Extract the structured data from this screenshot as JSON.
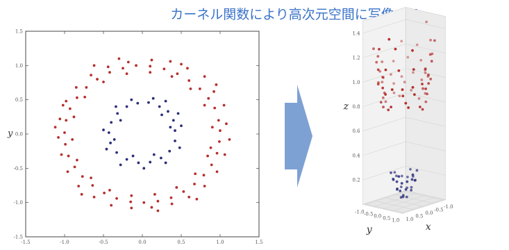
{
  "title": "カーネル関数により高次元空間に写像する。",
  "colors": {
    "outer": "#b5302e",
    "inner": "#2b2f7a",
    "arrow": "#7ea1d4",
    "title": "#3a73c9"
  },
  "chart_data": [
    {
      "type": "scatter",
      "xlim": [
        -1.5,
        1.5
      ],
      "ylim": [
        -1.5,
        1.5
      ],
      "xticks": [
        "-1.5",
        "-1.0",
        "-0.5",
        "0.0",
        "0.5",
        "1.0",
        "1.5"
      ],
      "yticks": [
        "1.5",
        "1.0",
        "0.5",
        "0.0",
        "-0.5",
        "-1.0",
        "-1.5"
      ],
      "xlabel": "",
      "ylabel": "y",
      "series": [
        {
          "color": "outer",
          "points": [
            [
              1.0,
              0.05
            ],
            [
              0.98,
              0.2
            ],
            [
              0.93,
              0.38
            ],
            [
              0.85,
              0.52
            ],
            [
              0.74,
              0.66
            ],
            [
              0.6,
              0.78
            ],
            [
              0.45,
              0.88
            ],
            [
              0.28,
              0.95
            ],
            [
              0.1,
              0.99
            ],
            [
              -0.08,
              1.0
            ],
            [
              -0.25,
              0.96
            ],
            [
              -0.42,
              0.9
            ],
            [
              -0.58,
              0.8
            ],
            [
              -0.72,
              0.68
            ],
            [
              -0.84,
              0.53
            ],
            [
              -0.93,
              0.37
            ],
            [
              -0.98,
              0.2
            ],
            [
              -1.0,
              0.02
            ],
            [
              -0.99,
              -0.15
            ],
            [
              -0.95,
              -0.32
            ],
            [
              -0.87,
              -0.48
            ],
            [
              -0.77,
              -0.62
            ],
            [
              -0.64,
              -0.75
            ],
            [
              -0.49,
              -0.86
            ],
            [
              -0.33,
              -0.94
            ],
            [
              -0.15,
              -0.99
            ],
            [
              0.02,
              -1.0
            ],
            [
              0.2,
              -0.98
            ],
            [
              0.37,
              -0.93
            ],
            [
              0.53,
              -0.84
            ],
            [
              0.67,
              -0.73
            ],
            [
              0.79,
              -0.6
            ],
            [
              0.89,
              -0.45
            ],
            [
              0.96,
              -0.28
            ],
            [
              0.99,
              -0.11
            ],
            [
              1.08,
              0.15
            ],
            [
              1.05,
              0.42
            ],
            [
              0.92,
              0.62
            ],
            [
              0.8,
              0.84
            ],
            [
              0.58,
              0.96
            ],
            [
              0.36,
              1.06
            ],
            [
              0.12,
              1.08
            ],
            [
              -0.18,
              1.05
            ],
            [
              -0.44,
              0.98
            ],
            [
              -0.66,
              0.86
            ],
            [
              -0.85,
              0.68
            ],
            [
              -0.98,
              0.48
            ],
            [
              -1.06,
              0.22
            ],
            [
              -1.08,
              -0.05
            ],
            [
              -1.04,
              -0.3
            ],
            [
              -0.96,
              -0.55
            ],
            [
              -0.82,
              -0.76
            ],
            [
              -0.62,
              -0.92
            ],
            [
              -0.4,
              -1.04
            ],
            [
              -0.14,
              -1.08
            ],
            [
              0.12,
              -1.07
            ],
            [
              0.38,
              -1.02
            ],
            [
              0.6,
              -0.92
            ],
            [
              0.8,
              -0.76
            ],
            [
              0.96,
              -0.55
            ],
            [
              1.06,
              -0.3
            ],
            [
              0.9,
              0.1
            ],
            [
              0.88,
              -0.2
            ],
            [
              0.8,
              0.42
            ],
            [
              0.62,
              0.66
            ],
            [
              0.38,
              0.84
            ],
            [
              0.1,
              0.9
            ],
            [
              -0.2,
              0.88
            ],
            [
              -0.5,
              0.76
            ],
            [
              -0.74,
              0.54
            ],
            [
              -0.88,
              0.25
            ],
            [
              -0.9,
              -0.08
            ],
            [
              -0.84,
              -0.38
            ],
            [
              -0.66,
              -0.64
            ],
            [
              -0.42,
              -0.82
            ],
            [
              -0.14,
              -0.9
            ],
            [
              0.16,
              -0.88
            ],
            [
              0.44,
              -0.78
            ],
            [
              0.68,
              -0.58
            ],
            [
              0.84,
              -0.32
            ],
            [
              0.5,
              1.02
            ],
            [
              -0.62,
              1.0
            ],
            [
              1.12,
              -0.08
            ],
            [
              -1.12,
              0.1
            ],
            [
              0.2,
              -1.12
            ],
            [
              -0.3,
              1.1
            ],
            [
              0.7,
              -0.95
            ],
            [
              -0.78,
              -0.88
            ],
            [
              0.95,
              0.72
            ],
            [
              -1.02,
              0.42
            ]
          ]
        },
        {
          "color": "inner",
          "points": [
            [
              0.42,
              0.05
            ],
            [
              0.4,
              0.2
            ],
            [
              0.33,
              0.33
            ],
            [
              0.22,
              0.4
            ],
            [
              0.08,
              0.46
            ],
            [
              -0.06,
              0.45
            ],
            [
              -0.2,
              0.4
            ],
            [
              -0.32,
              0.3
            ],
            [
              -0.4,
              0.17
            ],
            [
              -0.43,
              0.02
            ],
            [
              -0.41,
              -0.13
            ],
            [
              -0.33,
              -0.27
            ],
            [
              -0.2,
              -0.37
            ],
            [
              -0.05,
              -0.42
            ],
            [
              0.1,
              -0.41
            ],
            [
              0.24,
              -0.35
            ],
            [
              0.35,
              -0.25
            ],
            [
              0.42,
              -0.1
            ],
            [
              0.5,
              0.12
            ],
            [
              0.46,
              0.3
            ],
            [
              0.3,
              0.48
            ],
            [
              0.14,
              0.52
            ],
            [
              -0.14,
              0.5
            ],
            [
              -0.34,
              0.4
            ],
            [
              -0.5,
              0.06
            ],
            [
              -0.46,
              -0.22
            ],
            [
              -0.28,
              -0.45
            ],
            [
              0.02,
              -0.5
            ],
            [
              0.3,
              -0.42
            ],
            [
              0.48,
              -0.2
            ],
            [
              0.36,
              0.1
            ],
            [
              0.25,
              0.28
            ],
            [
              -0.28,
              0.2
            ],
            [
              -0.36,
              -0.08
            ],
            [
              -0.12,
              -0.32
            ],
            [
              0.15,
              -0.3
            ]
          ]
        }
      ]
    },
    {
      "type": "scatter",
      "ylabel": "y",
      "xlabel": "x",
      "zlabel": "z",
      "zticks": [
        "1.4",
        "1.2",
        "1.0",
        "0.8",
        "0.6",
        "0.4",
        "0.2"
      ],
      "yticks": [
        "-1.0",
        "-0.5",
        "0.0",
        "0.5",
        "1.0"
      ],
      "xticks": [
        "1.0",
        "0.5",
        "0.0",
        "-0.5",
        "-1.0"
      ],
      "series": [
        {
          "color": "outer",
          "points": [
            [
              -1.0,
              0.1,
              1.01
            ],
            [
              -0.95,
              0.3,
              0.99
            ],
            [
              -0.88,
              -0.45,
              1.0
            ],
            [
              -0.76,
              0.65,
              0.99
            ],
            [
              -0.6,
              -0.78,
              0.97
            ],
            [
              -0.42,
              0.9,
              0.98
            ],
            [
              -0.22,
              -0.97,
              1.0
            ],
            [
              0.0,
              1.0,
              1.0
            ],
            [
              0.2,
              -0.98,
              1.0
            ],
            [
              0.4,
              0.91,
              0.99
            ],
            [
              0.58,
              -0.8,
              0.98
            ],
            [
              0.72,
              0.68,
              0.98
            ],
            [
              0.85,
              -0.52,
              0.99
            ],
            [
              0.94,
              0.35,
              0.98
            ],
            [
              0.99,
              -0.12,
              0.98
            ],
            [
              -1.05,
              -0.2,
              1.1
            ],
            [
              -0.98,
              0.5,
              1.18
            ],
            [
              -0.82,
              -0.68,
              1.12
            ],
            [
              -0.62,
              0.86,
              1.15
            ],
            [
              -0.38,
              -1.0,
              1.1
            ],
            [
              -0.12,
              1.05,
              1.12
            ],
            [
              0.16,
              -1.05,
              1.12
            ],
            [
              0.42,
              0.98,
              1.14
            ],
            [
              0.66,
              -0.82,
              1.15
            ],
            [
              0.85,
              0.62,
              1.14
            ],
            [
              0.98,
              -0.38,
              1.12
            ],
            [
              1.06,
              0.12,
              1.14
            ],
            [
              -0.9,
              0.2,
              0.85
            ],
            [
              -0.78,
              -0.45,
              0.86
            ],
            [
              -0.55,
              0.68,
              0.88
            ],
            [
              -0.28,
              -0.86,
              0.85
            ],
            [
              0.02,
              0.9,
              0.81
            ],
            [
              0.3,
              -0.84,
              0.84
            ],
            [
              0.55,
              0.68,
              0.86
            ],
            [
              0.76,
              -0.46,
              0.84
            ],
            [
              0.88,
              0.22,
              0.83
            ],
            [
              -0.86,
              -0.1,
              0.8
            ],
            [
              -0.7,
              0.45,
              0.8
            ],
            [
              -0.45,
              -0.74,
              0.82
            ],
            [
              -0.15,
              0.86,
              0.78
            ],
            [
              0.15,
              -0.86,
              0.8
            ],
            [
              0.45,
              0.72,
              0.82
            ],
            [
              0.7,
              -0.4,
              0.8
            ],
            [
              0.86,
              0.05,
              0.8
            ],
            [
              -1.08,
              0.3,
              1.28
            ],
            [
              -1.04,
              -0.4,
              1.22
            ],
            [
              -0.9,
              0.72,
              1.3
            ],
            [
              -0.7,
              -0.9,
              1.25
            ],
            [
              0.5,
              1.0,
              1.3
            ],
            [
              0.72,
              -0.92,
              1.26
            ],
            [
              0.96,
              0.55,
              1.32
            ],
            [
              1.1,
              -0.2,
              1.3
            ],
            [
              -1.1,
              0.05,
              1.42
            ],
            [
              1.1,
              0.35,
              1.4
            ],
            [
              -0.3,
              1.02,
              1.06
            ],
            [
              0.3,
              -1.02,
              1.05
            ],
            [
              -0.6,
              -0.62,
              0.93
            ],
            [
              0.62,
              0.6,
              0.92
            ],
            [
              -0.5,
              0.5,
              0.92
            ],
            [
              0.5,
              -0.55,
              0.9
            ],
            [
              -0.95,
              -0.05,
              0.95
            ],
            [
              0.96,
              0.0,
              0.93
            ],
            [
              -0.2,
              0.98,
              0.95
            ],
            [
              0.22,
              -0.98,
              0.96
            ],
            [
              -0.8,
              0.3,
              1.05
            ],
            [
              0.8,
              -0.3,
              1.05
            ],
            [
              -0.35,
              -0.95,
              0.92
            ],
            [
              0.35,
              0.95,
              0.93
            ],
            [
              -0.65,
              0.75,
              1.2
            ],
            [
              0.65,
              -0.75,
              1.2
            ]
          ]
        },
        {
          "color": "inner",
          "points": [
            [
              0.42,
              0.05,
              0.19
            ],
            [
              0.35,
              0.25,
              0.18
            ],
            [
              0.2,
              0.38,
              0.19
            ],
            [
              0.0,
              0.44,
              0.2
            ],
            [
              -0.2,
              0.38,
              0.18
            ],
            [
              -0.35,
              0.24,
              0.17
            ],
            [
              -0.42,
              0.04,
              0.19
            ],
            [
              -0.36,
              -0.2,
              0.18
            ],
            [
              -0.22,
              -0.36,
              0.19
            ],
            [
              0.0,
              -0.43,
              0.2
            ],
            [
              0.2,
              -0.38,
              0.18
            ],
            [
              0.36,
              -0.22,
              0.2
            ],
            [
              0.3,
              0.1,
              0.11
            ],
            [
              0.15,
              0.26,
              0.12
            ],
            [
              -0.12,
              0.26,
              0.1
            ],
            [
              -0.28,
              0.1,
              0.11
            ],
            [
              -0.26,
              -0.12,
              0.1
            ],
            [
              -0.1,
              -0.27,
              0.11
            ],
            [
              0.12,
              -0.26,
              0.1
            ],
            [
              0.28,
              -0.08,
              0.12
            ],
            [
              0.1,
              0.05,
              0.05
            ],
            [
              -0.08,
              0.06,
              0.04
            ],
            [
              -0.05,
              -0.1,
              0.05
            ],
            [
              0.08,
              -0.08,
              0.04
            ],
            [
              0.46,
              0.2,
              0.24
            ],
            [
              -0.46,
              -0.15,
              0.24
            ],
            [
              0.0,
              0.48,
              0.24
            ],
            [
              0.05,
              -0.47,
              0.23
            ],
            [
              0.4,
              -0.3,
              0.25
            ],
            [
              -0.38,
              0.3,
              0.25
            ]
          ]
        }
      ]
    }
  ]
}
